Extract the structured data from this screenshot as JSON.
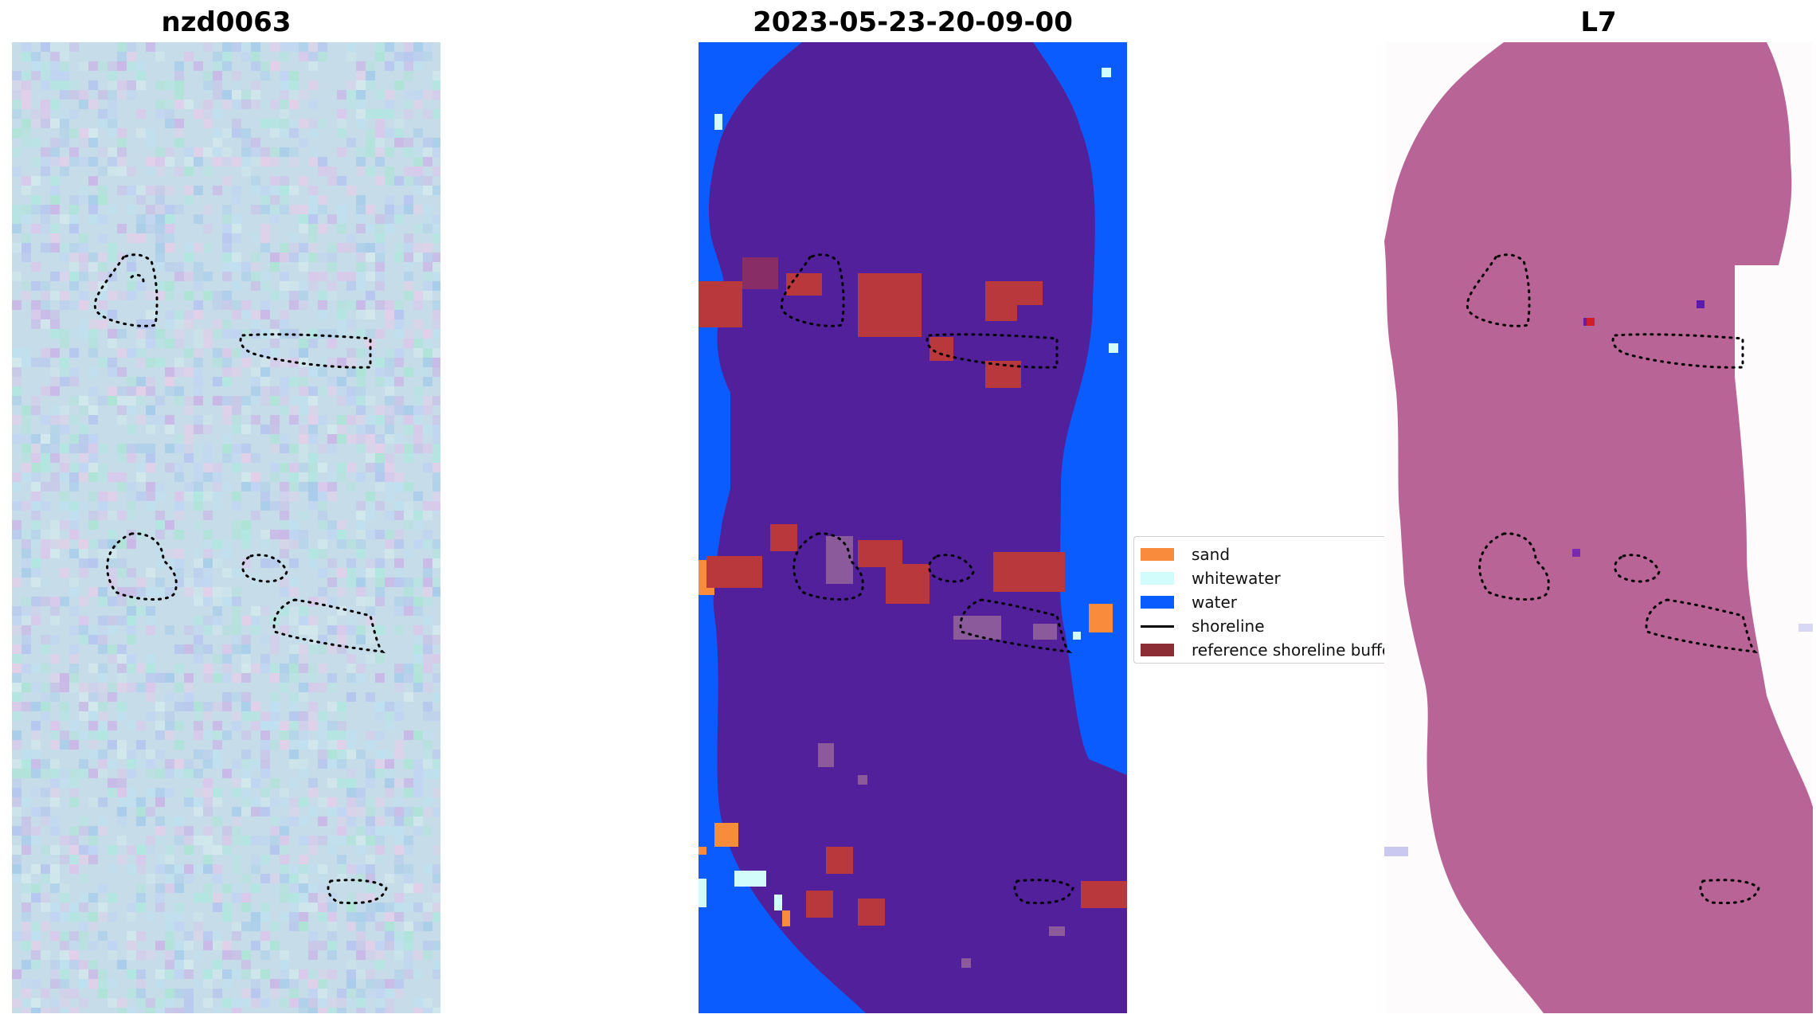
{
  "panels": [
    {
      "id": "rgb",
      "title": "nzd0063"
    },
    {
      "id": "classification",
      "title": "2023-05-23-20-09-00"
    },
    {
      "id": "index",
      "title": "L7"
    }
  ],
  "legend": {
    "items": [
      {
        "label": "sand",
        "kind": "patch",
        "color": "#f98b3c"
      },
      {
        "label": "whitewater",
        "kind": "patch",
        "color": "#d2fbfb"
      },
      {
        "label": "water",
        "kind": "patch",
        "color": "#0b5cff"
      },
      {
        "label": "shoreline",
        "kind": "line",
        "color": "#000000"
      },
      {
        "label": "reference shoreline buffer",
        "kind": "patch",
        "color": "#8c2c34"
      }
    ]
  },
  "colors": {
    "land": "#51209a",
    "buffer": "#b8383c",
    "index_fill": "#b86496",
    "background_white": "#fdfbfb",
    "rgb_base": "#c6dde9"
  }
}
